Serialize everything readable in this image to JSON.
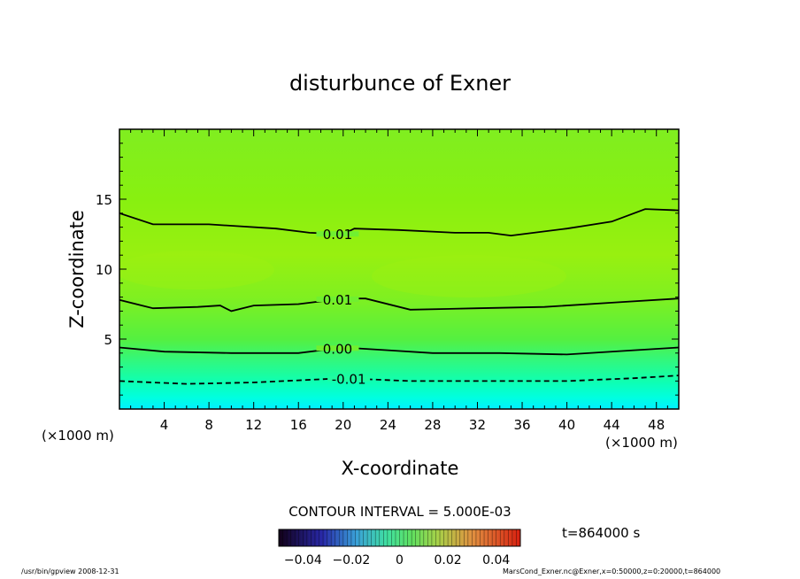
{
  "chart_data": {
    "type": "heatmap",
    "title": "disturbunce of Exner",
    "xlabel": "X-coordinate",
    "ylabel": "Z-coordinate",
    "x_unit": "(×1000 m)",
    "y_unit": "(×1000 m)",
    "xlim": [
      0,
      50
    ],
    "ylim": [
      0,
      20
    ],
    "x_ticks": [
      4,
      8,
      12,
      16,
      20,
      24,
      28,
      32,
      36,
      40,
      44,
      48
    ],
    "y_ticks": [
      5,
      10,
      15
    ],
    "grid": false,
    "contour_interval_label": "CONTOUR INTERVAL = 5.000E-03",
    "time_label": "t=864000 s",
    "colorbar": {
      "min": -0.05,
      "max": 0.05,
      "tick_values": [
        -0.04,
        -0.02,
        0,
        0.02,
        0.04
      ],
      "tick_labels": [
        "−0.04",
        "−0.02",
        "0",
        "0.02",
        "0.04"
      ]
    },
    "contours": [
      {
        "label": "0.01",
        "label_x": 19.5,
        "points": [
          [
            0,
            14.0
          ],
          [
            3,
            13.2
          ],
          [
            8,
            13.2
          ],
          [
            14,
            12.9
          ],
          [
            17,
            12.6
          ],
          [
            20,
            12.5
          ],
          [
            21,
            12.9
          ],
          [
            25,
            12.8
          ],
          [
            30,
            12.6
          ],
          [
            33,
            12.6
          ],
          [
            35,
            12.4
          ],
          [
            40,
            12.9
          ],
          [
            44,
            13.4
          ],
          [
            47,
            14.3
          ],
          [
            50,
            14.2
          ]
        ]
      },
      {
        "label": "0.01",
        "label_x": 19.5,
        "points": [
          [
            0,
            7.8
          ],
          [
            3,
            7.2
          ],
          [
            7,
            7.3
          ],
          [
            9,
            7.4
          ],
          [
            10,
            7.0
          ],
          [
            12,
            7.4
          ],
          [
            16,
            7.5
          ],
          [
            20,
            7.9
          ],
          [
            22,
            7.9
          ],
          [
            26,
            7.1
          ],
          [
            32,
            7.2
          ],
          [
            38,
            7.3
          ],
          [
            44,
            7.6
          ],
          [
            50,
            7.9
          ]
        ]
      },
      {
        "label": "0.00",
        "label_x": 19.5,
        "points": [
          [
            0,
            4.4
          ],
          [
            4,
            4.1
          ],
          [
            10,
            4.0
          ],
          [
            16,
            4.0
          ],
          [
            20,
            4.4
          ],
          [
            24,
            4.2
          ],
          [
            28,
            4.0
          ],
          [
            34,
            4.0
          ],
          [
            40,
            3.9
          ],
          [
            46,
            4.2
          ],
          [
            50,
            4.4
          ]
        ]
      },
      {
        "label": "-0.01",
        "label_x": 20.5,
        "points": [
          [
            0,
            2.0
          ],
          [
            6,
            1.8
          ],
          [
            12,
            1.9
          ],
          [
            20,
            2.2
          ],
          [
            26,
            2.0
          ],
          [
            32,
            2.0
          ],
          [
            40,
            2.0
          ],
          [
            46,
            2.2
          ],
          [
            50,
            2.4
          ]
        ]
      }
    ],
    "footer_left": "/usr/bin/gpview   2008-12-31",
    "footer_right": "MarsCond_Exner.nc@Exner,x=0:50000,z=0:20000,t=864000"
  }
}
